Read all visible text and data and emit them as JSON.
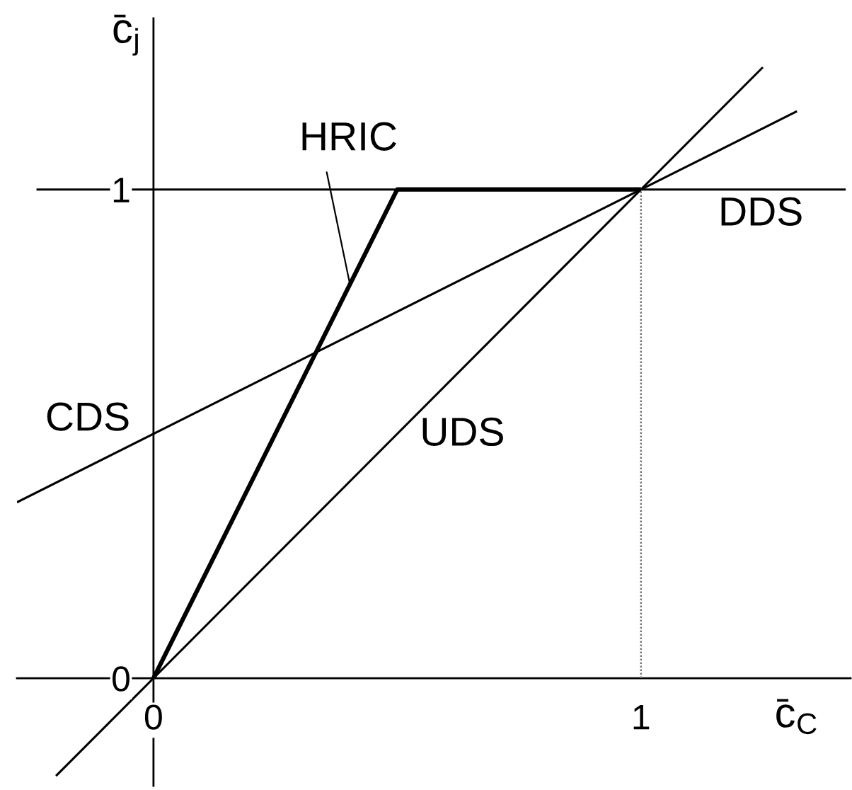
{
  "chart_data": {
    "type": "line",
    "xlabel": "c̄$_{C}$",
    "ylabel": "c̄$_{j}$",
    "xlim": [
      -0.28,
      1.43
    ],
    "ylim": [
      -0.22,
      1.35
    ],
    "xticks": [
      0,
      1
    ],
    "yticks": [
      0,
      1
    ],
    "series": [
      {
        "name": "HRIC",
        "color": "#000000",
        "x": [
          0,
          0.5,
          1
        ],
        "values": [
          0,
          1,
          1
        ]
      },
      {
        "name": "DDS",
        "color": "#000000",
        "x": [
          -0.24,
          1.42
        ],
        "values": [
          1,
          1
        ]
      },
      {
        "name": "CDS",
        "color": "#000000",
        "x": [
          -0.28,
          1.32
        ],
        "values": [
          0.36,
          1.16
        ]
      },
      {
        "name": "UDS",
        "color": "#000000",
        "x": [
          -0.2,
          1.25
        ],
        "values": [
          -0.2,
          1.25
        ]
      },
      {
        "color": "#777777",
        "x": [
          1,
          1
        ],
        "values": [
          0,
          1
        ],
        "line_style": "dotted"
      }
    ]
  }
}
